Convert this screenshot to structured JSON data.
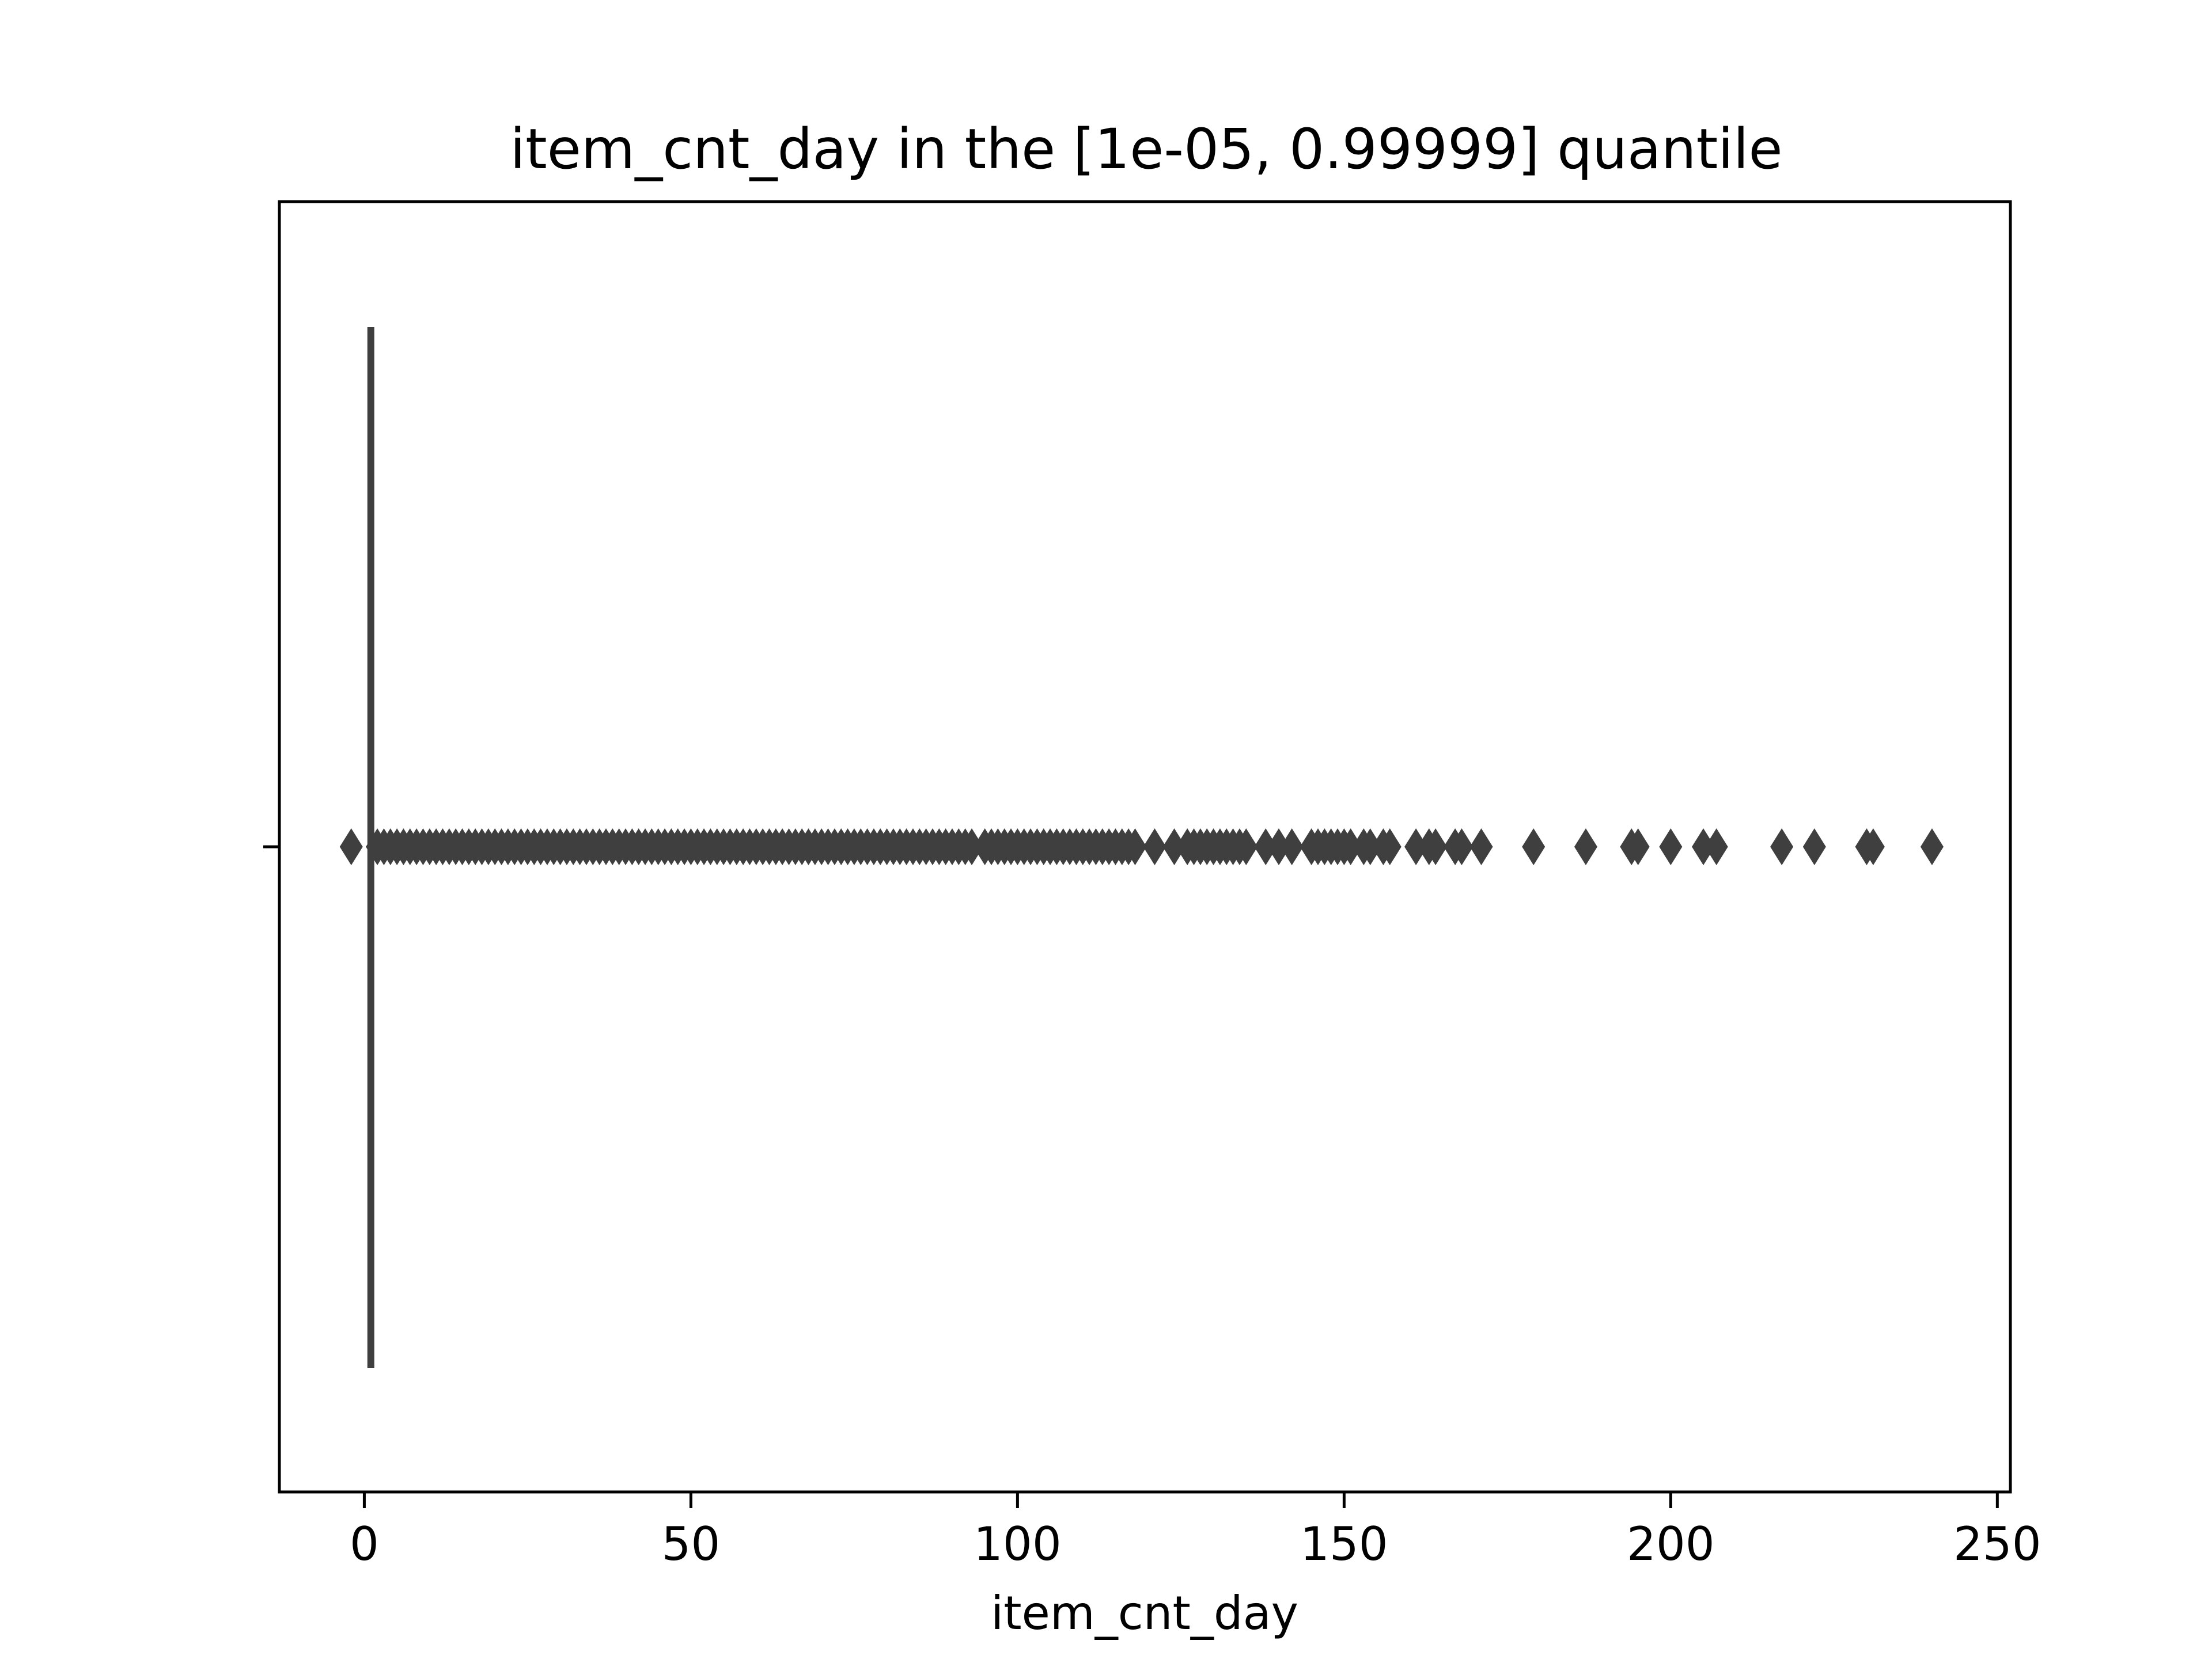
{
  "chart_data": {
    "type": "box",
    "title": "item_cnt_day in the [1e-05, 0.99999] quantile",
    "xlabel": "item_cnt_day",
    "ylabel": "",
    "xlim": [
      -13,
      252
    ],
    "xticks": [
      0,
      50,
      100,
      150,
      200,
      250
    ],
    "xtick_labels": [
      "0",
      "50",
      "100",
      "150",
      "200",
      "250"
    ],
    "grid": false,
    "legend": "none",
    "box": {
      "q1": 1,
      "median": 1,
      "q3": 1,
      "whisker_low": 1,
      "whisker_high": 1
    },
    "outliers": [
      -2,
      2,
      3,
      4,
      5,
      6,
      7,
      8,
      9,
      10,
      11,
      12,
      13,
      14,
      15,
      16,
      17,
      18,
      19,
      20,
      21,
      22,
      23,
      24,
      25,
      26,
      27,
      28,
      29,
      30,
      31,
      32,
      33,
      34,
      35,
      36,
      37,
      38,
      39,
      40,
      41,
      42,
      43,
      44,
      45,
      46,
      47,
      48,
      49,
      50,
      51,
      52,
      53,
      54,
      55,
      56,
      57,
      58,
      59,
      60,
      61,
      62,
      63,
      64,
      65,
      66,
      67,
      68,
      69,
      70,
      71,
      72,
      73,
      74,
      75,
      76,
      77,
      78,
      79,
      80,
      81,
      82,
      83,
      84,
      85,
      86,
      87,
      88,
      89,
      90,
      91,
      92,
      93,
      95,
      96,
      97,
      98,
      99,
      100,
      101,
      102,
      103,
      104,
      105,
      106,
      107,
      108,
      109,
      110,
      111,
      112,
      113,
      114,
      115,
      116,
      117,
      118,
      121,
      124,
      126,
      127,
      128,
      129,
      130,
      131,
      132,
      133,
      134,
      135,
      138,
      140,
      142,
      145,
      146,
      147,
      148,
      149,
      150,
      151,
      153,
      154,
      156,
      157,
      161,
      163,
      164,
      167,
      168,
      171,
      179,
      187,
      194,
      195,
      200,
      205,
      207,
      217,
      222,
      230,
      231,
      240
    ],
    "colors": {
      "box_line": "#3f3f3f",
      "outlier": "#3f3f3f",
      "axes": "#000000"
    }
  }
}
